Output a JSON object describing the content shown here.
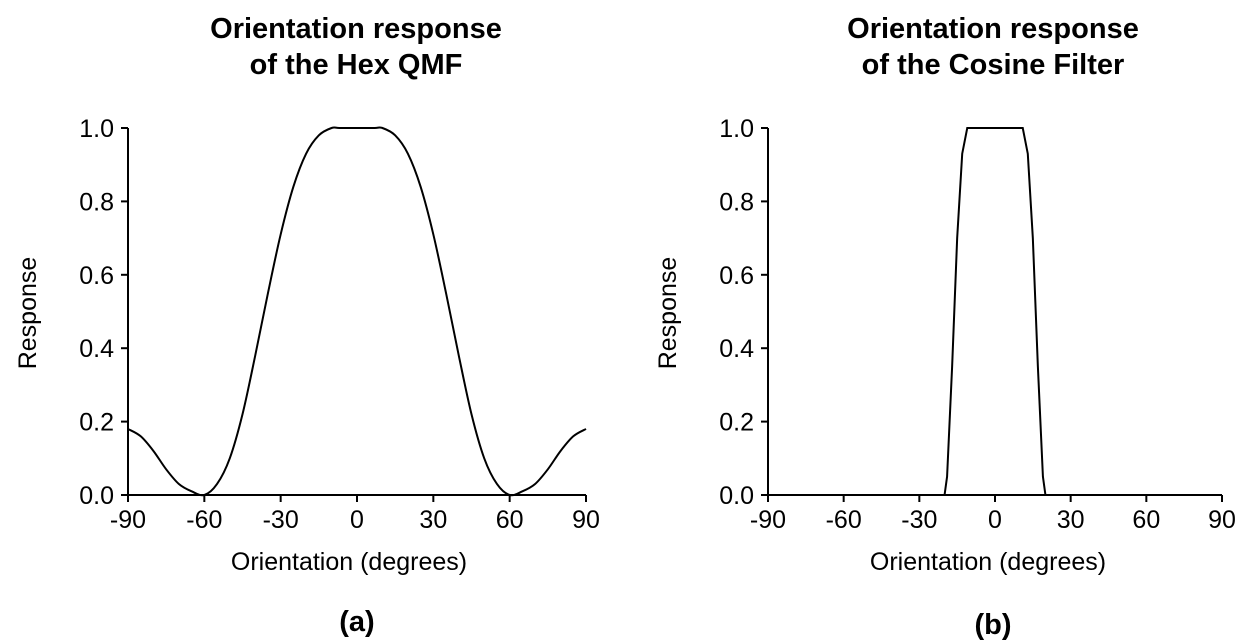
{
  "chart_data": [
    {
      "type": "line",
      "title_lines": [
        "Orientation response",
        "of the Hex QMF"
      ],
      "xlabel": "Orientation (degrees)",
      "ylabel": "Response",
      "panel_label": "(a)",
      "xlim": [
        -90,
        90
      ],
      "ylim": [
        0,
        1
      ],
      "xticks": [
        "-90",
        "-60",
        "-30",
        "0",
        "30",
        "60",
        "90"
      ],
      "yticks": [
        "0.0",
        "0.2",
        "0.4",
        "0.6",
        "0.8",
        "1.0"
      ],
      "grid": false,
      "series": [
        {
          "x": [
            -90,
            -85,
            -80,
            -75,
            -70,
            -65,
            -60,
            -55,
            -50,
            -45,
            -40,
            -35,
            -30,
            -25,
            -20,
            -15,
            -10,
            -7,
            0,
            7,
            10,
            15,
            20,
            25,
            30,
            35,
            40,
            45,
            50,
            55,
            60,
            65,
            70,
            75,
            80,
            85,
            90
          ],
          "y": [
            0.18,
            0.16,
            0.12,
            0.07,
            0.03,
            0.01,
            0.0,
            0.03,
            0.1,
            0.22,
            0.38,
            0.55,
            0.71,
            0.84,
            0.93,
            0.98,
            1.0,
            1.0,
            1.0,
            1.0,
            1.0,
            0.98,
            0.93,
            0.84,
            0.71,
            0.55,
            0.38,
            0.22,
            0.1,
            0.03,
            0.0,
            0.01,
            0.03,
            0.07,
            0.12,
            0.16,
            0.18
          ]
        }
      ]
    },
    {
      "type": "line",
      "title_lines": [
        "Orientation response",
        "of the Cosine Filter"
      ],
      "xlabel": "Orientation (degrees)",
      "ylabel": "Response",
      "panel_label": "(b)",
      "xlim": [
        -90,
        90
      ],
      "ylim": [
        0,
        1
      ],
      "xticks": [
        "-90",
        "-60",
        "-30",
        "0",
        "30",
        "60",
        "90"
      ],
      "yticks": [
        "0.0",
        "0.2",
        "0.4",
        "0.6",
        "0.8",
        "1.0"
      ],
      "grid": false,
      "series": [
        {
          "x": [
            -90,
            -20,
            -19,
            -17,
            -15,
            -13,
            -11,
            11,
            13,
            15,
            17,
            19,
            20,
            90
          ],
          "y": [
            0.0,
            0.0,
            0.05,
            0.35,
            0.7,
            0.93,
            1.0,
            1.0,
            0.93,
            0.7,
            0.35,
            0.05,
            0.0,
            0.0
          ]
        }
      ]
    }
  ]
}
